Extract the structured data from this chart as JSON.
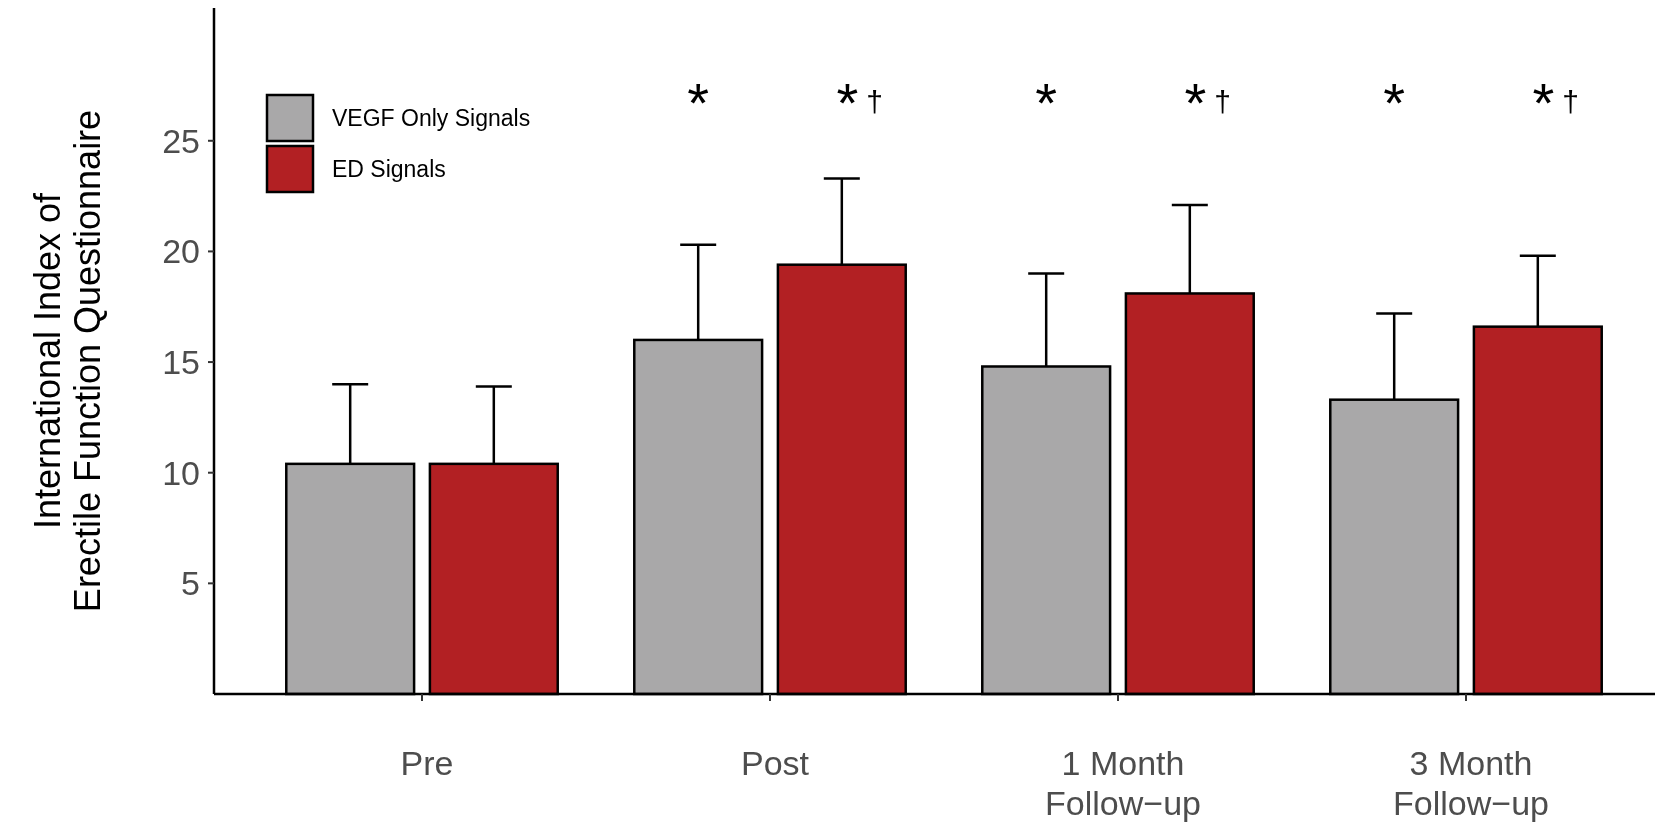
{
  "chart_data": {
    "type": "bar",
    "ylabel": "International Index of\nErectile Function Questionnaire",
    "categories": [
      "Pre",
      "Post",
      "1 Month Follow−up",
      "3 Month Follow−up"
    ],
    "series": [
      {
        "name": "VEGF Only Signals",
        "color": "#a9a8a9",
        "values": [
          10.4,
          16.0,
          14.8,
          13.3
        ],
        "errors": [
          [
            10.4,
            14.0
          ],
          [
            16.0,
            20.3
          ],
          [
            14.8,
            19.0
          ],
          [
            13.3,
            17.2
          ]
        ]
      },
      {
        "name": "ED Signals",
        "color": "#b22023",
        "values": [
          10.4,
          19.4,
          18.1,
          16.6
        ],
        "errors": [
          [
            10.4,
            13.9
          ],
          [
            19.4,
            23.3
          ],
          [
            18.1,
            22.1
          ],
          [
            16.6,
            19.8
          ]
        ]
      }
    ],
    "ylim": [
      0,
      31
    ],
    "yticks": [
      5,
      10,
      15,
      20,
      25
    ],
    "grid": false,
    "legend": "top left",
    "annotations": [
      "*",
      "*†",
      "*",
      "*†",
      "*",
      "*†"
    ]
  }
}
